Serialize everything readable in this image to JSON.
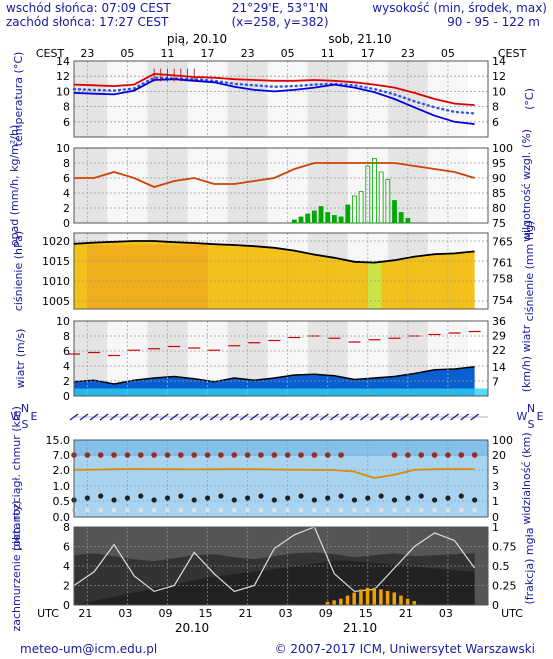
{
  "header": {
    "sunrise": "wschód słońca: 07:09 CEST",
    "sunset": "zachód słońca: 17:27 CEST",
    "coords": "21°29'E, 53°1'N",
    "grid": "(x=258, y=382)",
    "height_label": "wysokość (min, środek, max)",
    "height_values": "90 - 95 - 122 m"
  },
  "timeline_top": {
    "tz": "CEST",
    "hours": [
      "23",
      "05",
      "11",
      "17",
      "23",
      "05",
      "11",
      "17",
      "23",
      "05"
    ],
    "days": [
      "pią, 20.10",
      "sob, 21.10"
    ]
  },
  "timeline_bottom": {
    "tz": "UTC",
    "hours": [
      "21",
      "03",
      "09",
      "15",
      "21",
      "03",
      "09",
      "15",
      "21",
      "03"
    ],
    "days": [
      "20.10",
      "21.10"
    ]
  },
  "footer": {
    "email": "meteo-um@icm.edu.pl",
    "copyright": "© 2007-2017 ICM, Uniwersytet Warszawski"
  },
  "colors": {
    "temp_max": "#dd0000",
    "temp_mean": "#0000dd",
    "precip": "#00aa00",
    "humidity": "#cc4400",
    "pressure_line": "#000000",
    "wind_area": "#0a5fd0",
    "gust": "#cc0000",
    "visibility": "#e08a00",
    "cloud": "#333333"
  },
  "chart_data": [
    {
      "type": "line",
      "name": "temperature",
      "ylabel_left": "temperatura (°C)",
      "ylabel_right": "(°C)",
      "yticks": [
        6,
        8,
        10,
        12,
        14
      ],
      "ylim": [
        4,
        14
      ],
      "x_hours": [
        0,
        3,
        6,
        9,
        12,
        15,
        18,
        21,
        24,
        27,
        30,
        33,
        36,
        39,
        42,
        45,
        48,
        51,
        54,
        57,
        60
      ],
      "series": [
        {
          "values": [
            10.9,
            10.8,
            10.7,
            10.9,
            12.3,
            12.1,
            11.9,
            11.8,
            11.6,
            11.5,
            11.4,
            11.4,
            11.5,
            11.4,
            11.2,
            10.9,
            10.5,
            9.8,
            9.0,
            8.4,
            8.2
          ]
        },
        {
          "values": [
            9.8,
            9.7,
            9.6,
            10.1,
            11.5,
            11.6,
            11.4,
            11.2,
            10.6,
            10.2,
            10.0,
            10.2,
            10.5,
            10.9,
            10.5,
            9.9,
            9.0,
            7.9,
            6.8,
            6.0,
            5.7
          ]
        },
        {
          "values": [
            10.3,
            10.2,
            10.1,
            10.4,
            11.8,
            11.7,
            11.6,
            11.4,
            11.0,
            10.8,
            10.6,
            10.7,
            10.9,
            11.0,
            10.8,
            10.3,
            9.6,
            8.7,
            7.9,
            7.3,
            7.1
          ]
        }
      ]
    },
    {
      "type": "bar",
      "name": "precipitation_humidity",
      "ylabel_left": "opad (mm/h, kg/m²/h)",
      "ylabel_right": "wilgotność wzgl. (%)",
      "yticks_left": [
        0,
        2,
        4,
        6,
        8,
        10
      ],
      "yticks_right": [
        75,
        80,
        85,
        90,
        95,
        100
      ],
      "ylim": [
        0,
        10
      ],
      "x_hours": [
        0,
        3,
        6,
        9,
        12,
        15,
        18,
        21,
        24,
        27,
        30,
        33,
        36,
        39,
        42,
        45,
        48,
        51,
        54,
        57,
        60
      ],
      "series": [
        {
          "values": [
            90,
            90,
            92,
            90,
            87,
            89,
            90,
            88,
            88,
            89,
            90,
            93,
            95,
            95,
            95,
            95,
            95,
            94,
            93,
            92,
            90
          ]
        }
      ],
      "precip_hours": [
        33,
        34,
        35,
        36,
        37,
        38,
        39,
        40,
        41,
        42,
        43,
        44,
        45,
        46,
        47,
        48,
        49,
        50
      ],
      "precip_values": [
        0.4,
        0.8,
        1.2,
        1.6,
        2.2,
        1.4,
        1.0,
        0.8,
        2.4,
        3.6,
        4.2,
        7.6,
        8.6,
        6.8,
        5.8,
        3.0,
        1.4,
        0.6
      ]
    },
    {
      "type": "area",
      "name": "pressure",
      "ylabel_left": "ciśnienie (hPa)",
      "ylabel_right": "ciśnienie (mm Hg)",
      "yticks_left": [
        1005,
        1010,
        1015,
        1020
      ],
      "yticks_right": [
        754,
        758,
        761,
        765
      ],
      "ylim": [
        1003,
        1022
      ],
      "x_hours": [
        0,
        3,
        6,
        9,
        12,
        15,
        18,
        21,
        24,
        27,
        30,
        33,
        36,
        39,
        42,
        45,
        48,
        51,
        54,
        57,
        60
      ],
      "series": [
        {
          "values": [
            1019.3,
            1019.6,
            1019.8,
            1020.0,
            1020.0,
            1019.7,
            1019.5,
            1019.2,
            1019.0,
            1018.7,
            1018.3,
            1017.6,
            1016.6,
            1015.8,
            1014.8,
            1014.6,
            1015.2,
            1016.1,
            1016.7,
            1016.9,
            1017.4
          ]
        }
      ]
    },
    {
      "type": "area",
      "name": "wind",
      "ylabel_left": "wiatr (m/s)",
      "ylabel_right": "(km/h) wiatr",
      "yticks_left": [
        0,
        2,
        4,
        6,
        8,
        10
      ],
      "yticks_right": [
        7,
        14,
        22,
        29,
        36
      ],
      "ylim": [
        0,
        10
      ],
      "x_hours": [
        0,
        3,
        6,
        9,
        12,
        15,
        18,
        21,
        24,
        27,
        30,
        33,
        36,
        39,
        42,
        45,
        48,
        51,
        54,
        57,
        60
      ],
      "series": [
        {
          "values": [
            1.9,
            2.1,
            1.6,
            2.1,
            2.4,
            2.6,
            2.3,
            1.9,
            2.4,
            2.1,
            2.4,
            2.8,
            2.9,
            2.7,
            2.2,
            2.4,
            2.6,
            3.0,
            3.5,
            3.6,
            3.9
          ]
        },
        {
          "values": [
            5.6,
            5.8,
            5.4,
            6.1,
            6.3,
            6.6,
            6.4,
            6.1,
            6.7,
            7.1,
            7.4,
            7.8,
            8.0,
            7.7,
            7.2,
            7.5,
            7.7,
            8.0,
            8.2,
            8.4,
            8.6
          ]
        }
      ]
    },
    {
      "type": "scatter",
      "name": "cloud_base_visibility",
      "ylabel_left": "pion. rozciągł. chmur (km)",
      "ylabel_right": "widzialność (km)",
      "yticks_left": [
        0.0,
        0.5,
        1.0,
        2.0,
        7.0,
        15.0
      ],
      "yticks_right": [
        0,
        1,
        3,
        5,
        20,
        100
      ],
      "x_hours": [
        0,
        3,
        6,
        9,
        12,
        15,
        18,
        21,
        24,
        27,
        30,
        33,
        36,
        39,
        42,
        45,
        48,
        51,
        54,
        57,
        60
      ],
      "series": [
        {
          "values": [
            5.2,
            5.4,
            5.8,
            6.1,
            5.9,
            5.8,
            5.6,
            5.7,
            6.0,
            5.8,
            5.5,
            5.3,
            5.1,
            5.0,
            4.8,
            4.0,
            4.4,
            5.2,
            5.8,
            6.0,
            5.9
          ]
        }
      ]
    },
    {
      "type": "area",
      "name": "cloud_cover_fog",
      "ylabel_left": "zachmurzenie (oktanty)",
      "ylabel_right": "(frakcja) mgła",
      "yticks_left": [
        0,
        2,
        4,
        6,
        8
      ],
      "yticks_right": [
        0,
        0.25,
        0.5,
        0.75,
        1
      ],
      "ylim": [
        0,
        8
      ],
      "x_hours": [
        0,
        3,
        6,
        9,
        12,
        15,
        18,
        21,
        24,
        27,
        30,
        33,
        36,
        39,
        42,
        45,
        48,
        51,
        54,
        57,
        60
      ],
      "series": [
        {
          "values": [
            7.6,
            7.8,
            7.5,
            7.2,
            7.0,
            7.3,
            7.6,
            7.7,
            7.4,
            7.2,
            7.5,
            7.8,
            7.9,
            7.7,
            7.4,
            7.6,
            7.8,
            7.5,
            7.6,
            7.7,
            7.8
          ]
        },
        {
          "values": [
            2.0,
            3.4,
            6.2,
            3.0,
            1.4,
            2.0,
            5.4,
            3.2,
            1.4,
            2.0,
            5.8,
            7.2,
            8.0,
            3.2,
            1.4,
            1.6,
            3.8,
            6.0,
            7.4,
            6.6,
            3.8
          ]
        }
      ],
      "fog_hours": [
        38,
        39,
        40,
        41,
        42,
        43,
        44,
        45,
        46,
        47,
        48,
        49,
        50,
        51
      ],
      "fog_values": [
        0.04,
        0.06,
        0.08,
        0.12,
        0.16,
        0.2,
        0.22,
        0.22,
        0.2,
        0.18,
        0.16,
        0.12,
        0.08,
        0.05
      ]
    }
  ]
}
